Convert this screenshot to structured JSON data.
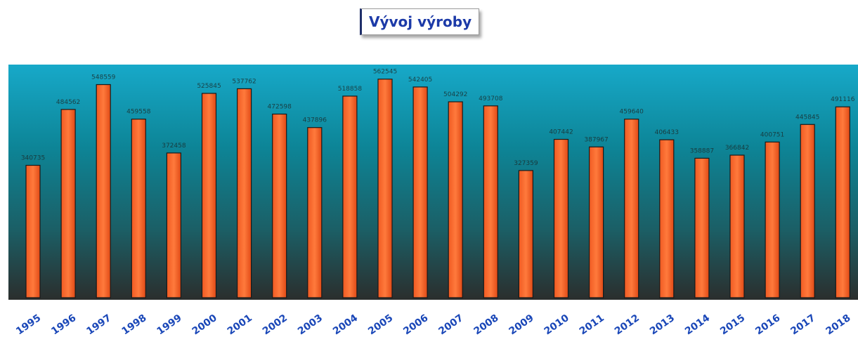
{
  "chart_data": {
    "type": "bar",
    "title": "Vývoj výroby",
    "categories": [
      "1995",
      "1996",
      "1997",
      "1998",
      "1999",
      "2000",
      "2001",
      "2002",
      "2003",
      "2004",
      "2005",
      "2006",
      "2007",
      "2008",
      "2009",
      "2010",
      "2011",
      "2012",
      "2013",
      "2014",
      "2015",
      "2016",
      "2017",
      "2018"
    ],
    "value_labels": [
      "340735",
      "484562",
      "548559",
      "459558",
      "372458",
      "525845",
      "537762",
      "472598",
      "437896",
      "518858",
      "562545",
      "542405",
      "504292",
      "493708",
      "327359",
      "407442",
      "387967",
      "459640",
      "406433",
      "358887",
      "366842",
      "400751",
      "445845",
      "491116"
    ],
    "values": [
      340735,
      484562,
      548559,
      459558,
      372458,
      525845,
      537762,
      472598,
      437896,
      518858,
      562545,
      542405,
      504292,
      493708,
      327359,
      407442,
      387967,
      459640,
      406433,
      358887,
      366842,
      400751,
      445845,
      491116
    ],
    "ylim": [
      0,
      600000
    ],
    "grid": false,
    "legend": "none",
    "colors": {
      "bar": "#f05a22",
      "bar_edge": "#1a1a1a",
      "plot_top": "#17a9c9",
      "plot_bottom": "#2b2e2d",
      "tick_label": "#1a47b8",
      "title": "#1c3aa8"
    }
  }
}
